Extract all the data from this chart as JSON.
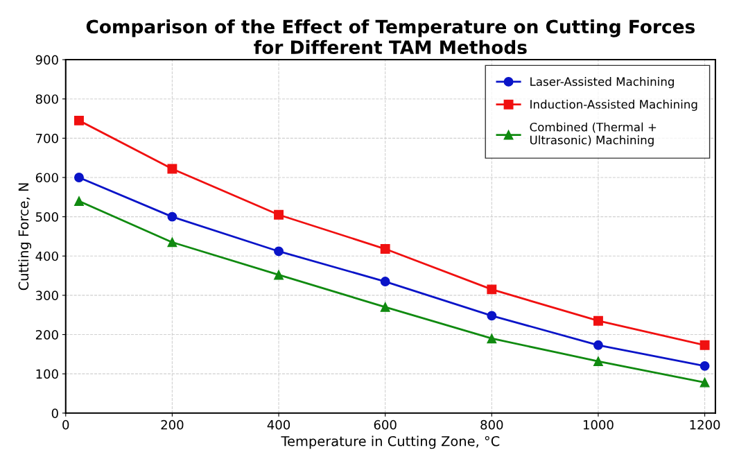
{
  "chart_data": {
    "type": "line",
    "title": "Comparison of the Effect of Temperature on Cutting Forces\nfor Different TAM Methods",
    "xlabel": "Temperature in Cutting Zone, °C",
    "ylabel": "Cutting Force, N",
    "x": [
      25,
      200,
      400,
      600,
      800,
      1000,
      1200
    ],
    "series": [
      {
        "name": "Laser-Assisted Machining",
        "color": "#0a14c8",
        "marker": "circle",
        "values": [
          600,
          500,
          412,
          335,
          248,
          173,
          120
        ]
      },
      {
        "name": "Induction-Assisted Machining",
        "color": "#f01010",
        "marker": "square",
        "values": [
          745,
          622,
          505,
          418,
          315,
          235,
          173
        ]
      },
      {
        "name": "Combined (Thermal +\nUltrasonic) Machining",
        "color": "#108a10",
        "marker": "triangle",
        "values": [
          540,
          435,
          352,
          270,
          190,
          132,
          78
        ]
      }
    ],
    "xlim": [
      0,
      1220
    ],
    "xticks": [
      0,
      200,
      400,
      600,
      800,
      1000,
      1200
    ],
    "ylim": [
      0,
      900
    ],
    "yticks": [
      0,
      100,
      200,
      300,
      400,
      500,
      600,
      700,
      800,
      900
    ],
    "grid": true,
    "legend": "top right",
    "line_style": "solid"
  }
}
